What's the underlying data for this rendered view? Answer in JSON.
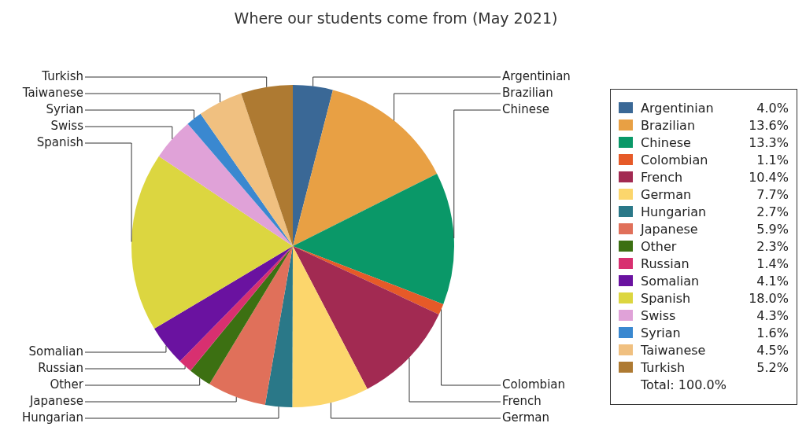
{
  "chart_data": {
    "type": "pie",
    "title": "Where our students come from (May 2021)",
    "categories": [
      "Argentinian",
      "Brazilian",
      "Chinese",
      "Colombian",
      "French",
      "German",
      "Hungarian",
      "Japanese",
      "Other",
      "Russian",
      "Somalian",
      "Spanish",
      "Swiss",
      "Syrian",
      "Taiwanese",
      "Turkish"
    ],
    "values": [
      4.0,
      13.6,
      13.3,
      1.1,
      10.4,
      7.7,
      2.7,
      5.9,
      2.3,
      1.4,
      4.1,
      18.0,
      4.3,
      1.6,
      4.5,
      5.2
    ],
    "value_labels": [
      "4.0%",
      "13.6%",
      "13.3%",
      "1.1%",
      "10.4%",
      "7.7%",
      "2.7%",
      "5.9%",
      "2.3%",
      "1.4%",
      "4.1%",
      "18.0%",
      "4.3%",
      "1.6%",
      "4.5%",
      "5.2%"
    ],
    "colors": [
      "#3a6896",
      "#e8a044",
      "#0a9868",
      "#e65a28",
      "#a22a52",
      "#fcd66c",
      "#2a7888",
      "#e0705a",
      "#3c7012",
      "#d83070",
      "#6a12a0",
      "#dcd640",
      "#e0a2d8",
      "#3a88d0",
      "#f0c080",
      "#ae7a32"
    ],
    "legend": "right",
    "annotations": [
      "Total: 100.0%"
    ]
  }
}
